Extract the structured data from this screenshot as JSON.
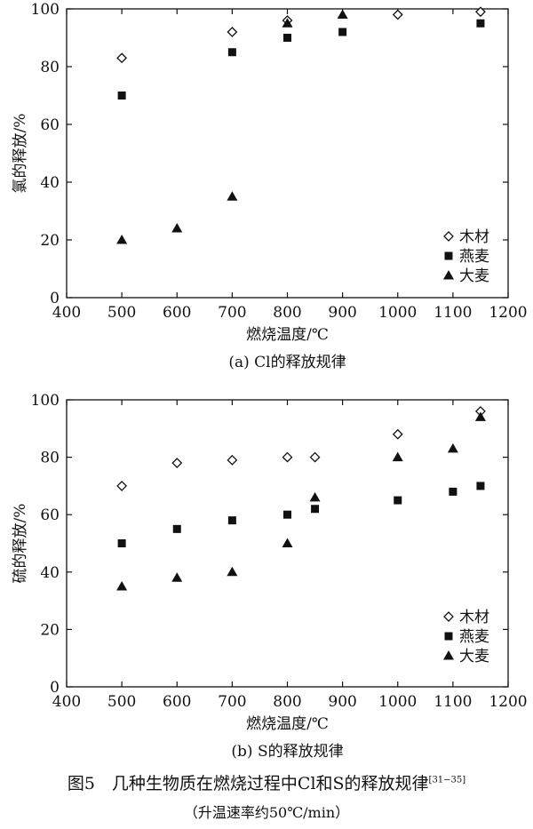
{
  "chart_data": [
    {
      "type": "scatter",
      "ylabel": "氯的释放/%",
      "xlabel": "燃烧温度/℃",
      "caption": "(a) Cl的释放规律",
      "xlim": [
        400,
        1200
      ],
      "ylim": [
        0,
        100
      ],
      "xticks": [
        400,
        500,
        600,
        700,
        800,
        900,
        1000,
        1100,
        1200
      ],
      "yticks": [
        0,
        20,
        40,
        60,
        80,
        100
      ],
      "legend_position": "bottom-right",
      "series": [
        {
          "name": "木材",
          "marker": "diamond-open",
          "x": [
            500,
            700,
            800,
            1000,
            1150
          ],
          "y": [
            83,
            92,
            96,
            98,
            99
          ]
        },
        {
          "name": "燕麦",
          "marker": "square-filled",
          "x": [
            500,
            700,
            800,
            900,
            1150
          ],
          "y": [
            70,
            85,
            90,
            92,
            95
          ]
        },
        {
          "name": "大麦",
          "marker": "triangle-filled",
          "x": [
            500,
            600,
            700,
            800,
            900
          ],
          "y": [
            20,
            24,
            35,
            95,
            98
          ]
        }
      ]
    },
    {
      "type": "scatter",
      "ylabel": "硫的释放/%",
      "xlabel": "燃烧温度/℃",
      "caption": "(b) S的释放规律",
      "xlim": [
        400,
        1200
      ],
      "ylim": [
        0,
        100
      ],
      "xticks": [
        400,
        500,
        600,
        700,
        800,
        900,
        1000,
        1100,
        1200
      ],
      "yticks": [
        0,
        20,
        40,
        60,
        80,
        100
      ],
      "legend_position": "bottom-right",
      "series": [
        {
          "name": "木材",
          "marker": "diamond-open",
          "x": [
            500,
            600,
            700,
            800,
            850,
            1000,
            1150
          ],
          "y": [
            70,
            78,
            79,
            80,
            80,
            88,
            96
          ]
        },
        {
          "name": "燕麦",
          "marker": "square-filled",
          "x": [
            500,
            600,
            700,
            800,
            850,
            1000,
            1100,
            1150
          ],
          "y": [
            50,
            55,
            58,
            60,
            62,
            65,
            68,
            70
          ]
        },
        {
          "name": "大麦",
          "marker": "triangle-filled",
          "x": [
            500,
            600,
            700,
            800,
            850,
            1000,
            1100,
            1150
          ],
          "y": [
            35,
            38,
            40,
            50,
            66,
            80,
            83,
            94
          ]
        }
      ]
    }
  ],
  "figure": {
    "title": "图5　几种生物质在燃烧过程中Cl和S的释放规律",
    "ref": "[31−35]",
    "subtitle": "（升温速率约50℃/min）"
  }
}
